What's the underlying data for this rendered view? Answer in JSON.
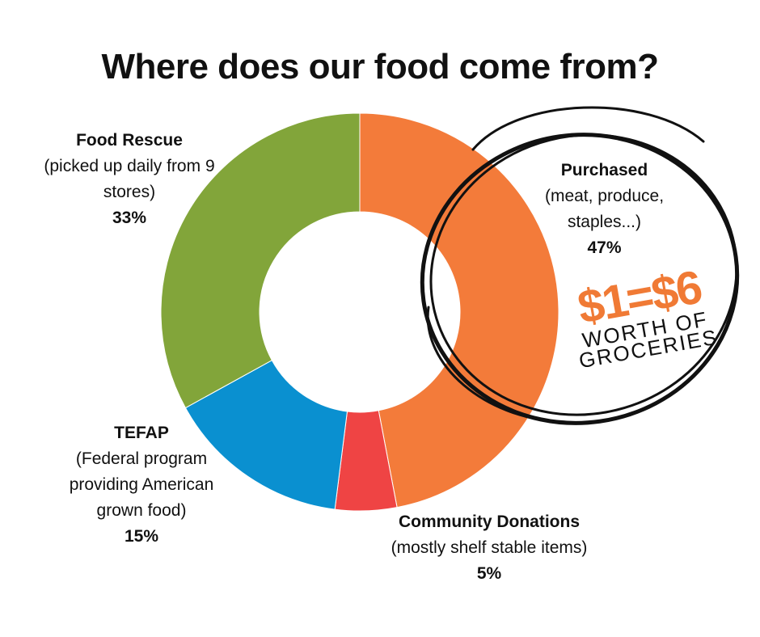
{
  "chart_data": {
    "type": "pie",
    "title": "Where does our food come from?",
    "slices": [
      {
        "name": "Purchased",
        "detail": "(meat, produce, staples...)",
        "value": 47,
        "value_label": "47%",
        "color": "#f37b3a"
      },
      {
        "name": "Community Donations",
        "detail": "(mostly shelf stable items)",
        "value": 5,
        "value_label": "5%",
        "color": "#ef4444"
      },
      {
        "name": "TEFAP",
        "detail": "(Federal program providing American grown food)",
        "value": 15,
        "value_label": "15%",
        "color": "#0a90d0"
      },
      {
        "name": "Food Rescue",
        "detail": "(picked up daily from 9 stores)",
        "value": 33,
        "value_label": "33%",
        "color": "#82a53a"
      }
    ]
  },
  "callout": {
    "headline": "$1=$6",
    "sub_line1": "WORTH OF",
    "sub_line2": "GROCERIES",
    "headline_color": "#f07a35"
  }
}
